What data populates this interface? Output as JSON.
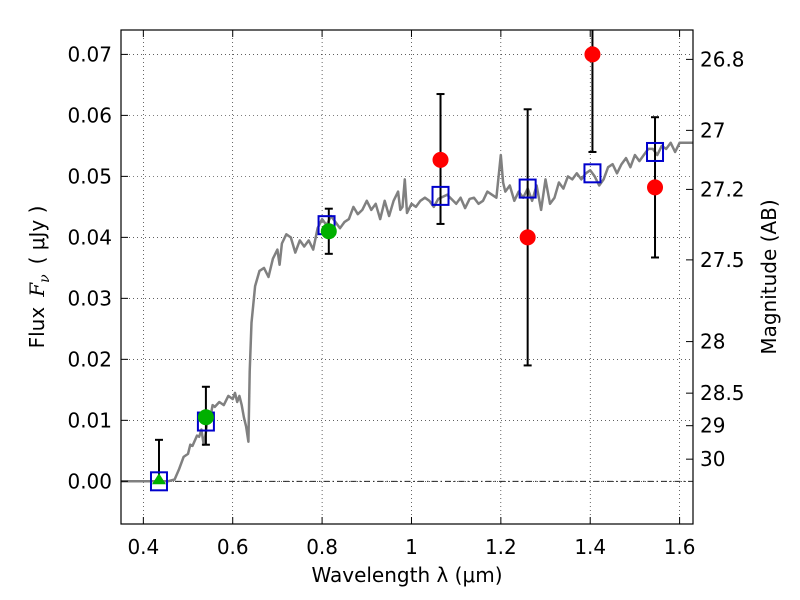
{
  "chart_data": {
    "type": "scatter",
    "xlabel": "Wavelength  λ (μm)",
    "ylabel": "Flux  F_ν  ( μJy )",
    "ylabel_parts": {
      "flux": "Flux",
      "symbol": "F",
      "subscript": "ν",
      "unit": "( μJy )"
    },
    "ylabel_right": "Magnitude (AB)",
    "xlim": [
      0.35,
      1.63
    ],
    "ylim": [
      -0.007,
      0.074
    ],
    "grid": true,
    "x_ticks": [
      {
        "value": 0.4,
        "label": "0.4"
      },
      {
        "value": 0.6,
        "label": "0.6"
      },
      {
        "value": 0.8,
        "label": "0.8"
      },
      {
        "value": 1.0,
        "label": "1"
      },
      {
        "value": 1.2,
        "label": "1.2"
      },
      {
        "value": 1.4,
        "label": "1.4"
      },
      {
        "value": 1.6,
        "label": "1.6"
      }
    ],
    "y_ticks": [
      {
        "value": 0.0,
        "label": "0.00"
      },
      {
        "value": 0.01,
        "label": "0.01"
      },
      {
        "value": 0.02,
        "label": "0.02"
      },
      {
        "value": 0.03,
        "label": "0.03"
      },
      {
        "value": 0.04,
        "label": "0.04"
      },
      {
        "value": 0.05,
        "label": "0.05"
      },
      {
        "value": 0.06,
        "label": "0.06"
      },
      {
        "value": 0.07,
        "label": "0.07"
      }
    ],
    "right_ticks": [
      {
        "value": 26.8,
        "label": "26.8"
      },
      {
        "value": 27.0,
        "label": "27"
      },
      {
        "value": 27.2,
        "label": "27.2"
      },
      {
        "value": 27.5,
        "label": "27.5"
      },
      {
        "value": 28.0,
        "label": "28"
      },
      {
        "value": 28.5,
        "label": "28.5"
      },
      {
        "value": 29.0,
        "label": "29"
      },
      {
        "value": 30.0,
        "label": "30"
      }
    ],
    "ab_zero_point_ujy": 0.003631,
    "model_spectrum": {
      "color": "#808080",
      "points": [
        [
          0.35,
          0.0
        ],
        [
          0.455,
          0.0
        ],
        [
          0.47,
          0.0003
        ],
        [
          0.48,
          0.002
        ],
        [
          0.49,
          0.004
        ],
        [
          0.5,
          0.0045
        ],
        [
          0.505,
          0.006
        ],
        [
          0.51,
          0.0058
        ],
        [
          0.52,
          0.0075
        ],
        [
          0.525,
          0.0073
        ],
        [
          0.53,
          0.0085
        ],
        [
          0.535,
          0.006
        ],
        [
          0.54,
          0.008
        ],
        [
          0.545,
          0.011
        ],
        [
          0.55,
          0.0105
        ],
        [
          0.555,
          0.0125
        ],
        [
          0.56,
          0.0122
        ],
        [
          0.57,
          0.013
        ],
        [
          0.58,
          0.0125
        ],
        [
          0.59,
          0.014
        ],
        [
          0.6,
          0.0135
        ],
        [
          0.605,
          0.0145
        ],
        [
          0.61,
          0.013
        ],
        [
          0.615,
          0.014
        ],
        [
          0.62,
          0.0125
        ],
        [
          0.625,
          0.0105
        ],
        [
          0.63,
          0.009
        ],
        [
          0.635,
          0.0065
        ],
        [
          0.638,
          0.018
        ],
        [
          0.642,
          0.026
        ],
        [
          0.65,
          0.032
        ],
        [
          0.66,
          0.0345
        ],
        [
          0.67,
          0.035
        ],
        [
          0.68,
          0.0335
        ],
        [
          0.69,
          0.0365
        ],
        [
          0.7,
          0.038
        ],
        [
          0.705,
          0.0355
        ],
        [
          0.71,
          0.039
        ],
        [
          0.72,
          0.0405
        ],
        [
          0.73,
          0.04
        ],
        [
          0.74,
          0.0375
        ],
        [
          0.75,
          0.0395
        ],
        [
          0.76,
          0.0385
        ],
        [
          0.77,
          0.0395
        ],
        [
          0.78,
          0.038
        ],
        [
          0.79,
          0.0415
        ],
        [
          0.8,
          0.043
        ],
        [
          0.81,
          0.042
        ],
        [
          0.82,
          0.0435
        ],
        [
          0.83,
          0.0425
        ],
        [
          0.84,
          0.0415
        ],
        [
          0.85,
          0.0425
        ],
        [
          0.86,
          0.043
        ],
        [
          0.87,
          0.045
        ],
        [
          0.88,
          0.0438
        ],
        [
          0.89,
          0.0445
        ],
        [
          0.9,
          0.046
        ],
        [
          0.91,
          0.0445
        ],
        [
          0.92,
          0.0455
        ],
        [
          0.93,
          0.043
        ],
        [
          0.94,
          0.046
        ],
        [
          0.95,
          0.0435
        ],
        [
          0.96,
          0.046
        ],
        [
          0.97,
          0.0475
        ],
        [
          0.975,
          0.0445
        ],
        [
          0.98,
          0.045
        ],
        [
          0.985,
          0.0495
        ],
        [
          0.99,
          0.044
        ],
        [
          1.0,
          0.0455
        ],
        [
          1.01,
          0.045
        ],
        [
          1.02,
          0.046
        ],
        [
          1.03,
          0.0465
        ],
        [
          1.04,
          0.046
        ],
        [
          1.05,
          0.045
        ],
        [
          1.06,
          0.0463
        ],
        [
          1.08,
          0.047
        ],
        [
          1.1,
          0.0455
        ],
        [
          1.11,
          0.0465
        ],
        [
          1.12,
          0.0448
        ],
        [
          1.13,
          0.0463
        ],
        [
          1.14,
          0.0465
        ],
        [
          1.15,
          0.0455
        ],
        [
          1.16,
          0.046
        ],
        [
          1.17,
          0.0475
        ],
        [
          1.18,
          0.047
        ],
        [
          1.19,
          0.0465
        ],
        [
          1.2,
          0.0535
        ],
        [
          1.205,
          0.049
        ],
        [
          1.21,
          0.0475
        ],
        [
          1.22,
          0.0485
        ],
        [
          1.23,
          0.046
        ],
        [
          1.24,
          0.0475
        ],
        [
          1.25,
          0.0465
        ],
        [
          1.26,
          0.048
        ],
        [
          1.27,
          0.046
        ],
        [
          1.28,
          0.0485
        ],
        [
          1.29,
          0.0445
        ],
        [
          1.3,
          0.0495
        ],
        [
          1.31,
          0.0455
        ],
        [
          1.32,
          0.0465
        ],
        [
          1.33,
          0.049
        ],
        [
          1.34,
          0.048
        ],
        [
          1.35,
          0.05
        ],
        [
          1.36,
          0.0495
        ],
        [
          1.37,
          0.0505
        ],
        [
          1.38,
          0.0495
        ],
        [
          1.39,
          0.0505
        ],
        [
          1.4,
          0.051
        ],
        [
          1.41,
          0.05
        ],
        [
          1.42,
          0.0485
        ],
        [
          1.43,
          0.0495
        ],
        [
          1.44,
          0.0515
        ],
        [
          1.45,
          0.052
        ],
        [
          1.46,
          0.0505
        ],
        [
          1.47,
          0.052
        ],
        [
          1.48,
          0.053
        ],
        [
          1.49,
          0.0515
        ],
        [
          1.5,
          0.0535
        ],
        [
          1.51,
          0.0525
        ],
        [
          1.52,
          0.0535
        ],
        [
          1.53,
          0.0545
        ],
        [
          1.54,
          0.0545
        ],
        [
          1.55,
          0.0535
        ],
        [
          1.56,
          0.055
        ],
        [
          1.57,
          0.0545
        ],
        [
          1.58,
          0.0555
        ],
        [
          1.59,
          0.054
        ],
        [
          1.6,
          0.0555
        ],
        [
          1.61,
          0.0555
        ],
        [
          1.63,
          0.0555
        ]
      ]
    },
    "model_photometry": {
      "marker": "open-square",
      "color": "#0000cc",
      "points": [
        {
          "x": 0.435,
          "y": 0.0
        },
        {
          "x": 0.54,
          "y": 0.0098
        },
        {
          "x": 0.81,
          "y": 0.042
        },
        {
          "x": 1.065,
          "y": 0.0468
        },
        {
          "x": 1.26,
          "y": 0.048
        },
        {
          "x": 1.405,
          "y": 0.0505
        },
        {
          "x": 1.545,
          "y": 0.054
        }
      ]
    },
    "observed_green": {
      "color": "#00b000",
      "points": [
        {
          "x": 0.435,
          "y": 0.0,
          "err_low": 0.0,
          "err_high": 0.0068,
          "marker": "triangle"
        },
        {
          "x": 0.54,
          "y": 0.0105,
          "err_low": 0.0045,
          "err_high": 0.005,
          "marker": "circle"
        },
        {
          "x": 0.815,
          "y": 0.041,
          "err_low": 0.0037,
          "err_high": 0.0037,
          "marker": "circle"
        }
      ]
    },
    "observed_red": {
      "color": "#ff0000",
      "points": [
        {
          "x": 1.065,
          "y": 0.0527,
          "err_low": 0.0105,
          "err_high": 0.0108
        },
        {
          "x": 1.26,
          "y": 0.04,
          "err_low": 0.021,
          "err_high": 0.021
        },
        {
          "x": 1.405,
          "y": 0.07,
          "err_low": 0.016,
          "err_high": 0.007
        },
        {
          "x": 1.545,
          "y": 0.0482,
          "err_low": 0.0115,
          "err_high": 0.0115
        }
      ]
    }
  }
}
